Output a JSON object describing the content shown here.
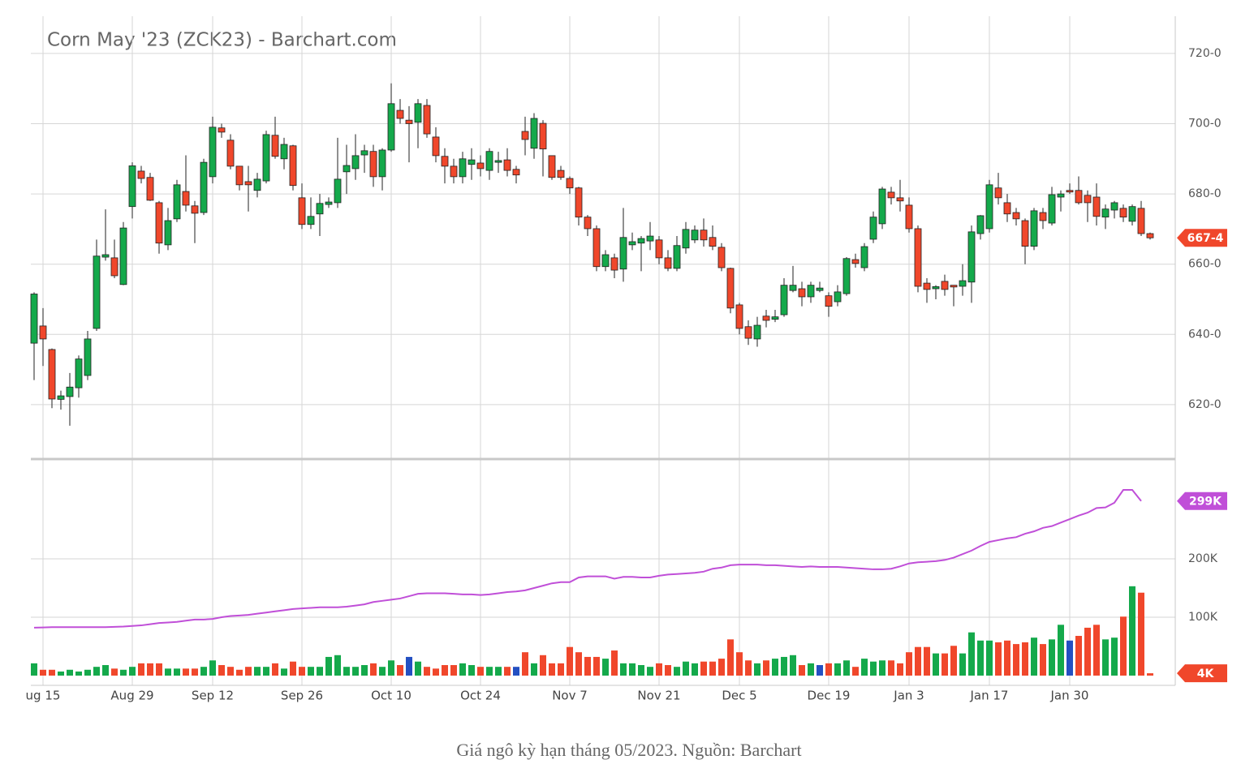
{
  "chart_data": {
    "type": "candlestick",
    "title": "Corn May '23 (ZCK23) - Barchart.com",
    "caption": "Giá ngô kỳ hạn tháng 05/2023. Nguồn: Barchart",
    "categories": [
      null,
      "ug 15",
      null,
      null,
      null,
      null,
      null,
      null,
      null,
      null,
      null,
      "Aug 29",
      null,
      null,
      null,
      null,
      null,
      null,
      null,
      null,
      "Sep 12",
      null,
      null,
      null,
      null,
      null,
      null,
      null,
      null,
      null,
      "Sep 26",
      null,
      null,
      null,
      null,
      null,
      null,
      null,
      null,
      null,
      "Oct 10",
      null,
      null,
      null,
      null,
      null,
      null,
      null,
      null,
      null,
      "Oct 24",
      null,
      null,
      null,
      null,
      null,
      null,
      null,
      null,
      null,
      "Nov 7",
      null,
      null,
      null,
      null,
      null,
      null,
      null,
      null,
      null,
      "Nov 21",
      null,
      null,
      null,
      null,
      null,
      null,
      null,
      null,
      "Dec 5",
      null,
      null,
      null,
      null,
      null,
      null,
      null,
      null,
      null,
      "Dec 19",
      null,
      null,
      null,
      null,
      null,
      null,
      null,
      null,
      "Jan 3",
      null,
      null,
      null,
      null,
      null,
      null,
      null,
      null,
      "Jan 17",
      null,
      null,
      null,
      null,
      null,
      null,
      null,
      null,
      "Jan 30",
      null,
      null,
      null,
      null,
      null,
      null,
      null,
      null,
      null
    ],
    "open": [
      637.5,
      642.4,
      635.7,
      621.5,
      622.3,
      624.8,
      628.3,
      641.7,
      662,
      661.8,
      654.2,
      676.4,
      686.5,
      684.7,
      677.5,
      665.5,
      672.9,
      680.7,
      676.6,
      674.7,
      684.9,
      698.8,
      695.3,
      687.9,
      683.5,
      681,
      683.7,
      696.7,
      690,
      693.7,
      678.9,
      671.3,
      674.3,
      677,
      677.5,
      686.3,
      687.2,
      691.1,
      692.1,
      684.9,
      692.5,
      703.8,
      701,
      700.4,
      705.2,
      696.2,
      690.7,
      687.9,
      684.9,
      688.4,
      688.8,
      686.7,
      689,
      689.7,
      687,
      697.8,
      693,
      700.1,
      690.9,
      686.7,
      684.4,
      681.7,
      673.4,
      670.1,
      659.3,
      661.8,
      658.6,
      665.5,
      666,
      666.6,
      666.9,
      661.8,
      658.8,
      664.6,
      666.9,
      669.7,
      667.6,
      664.8,
      658.8,
      648.4,
      642.2,
      638.7,
      645.2,
      644.3,
      645.6,
      652.5,
      653,
      650.7,
      652.5,
      651,
      649.3,
      651.6,
      661.3,
      659,
      667.1,
      671.5,
      680.5,
      678.9,
      676.8,
      670.1,
      654.6,
      653,
      655.1,
      654,
      653.7,
      654.9,
      668.7,
      670.1,
      681.7,
      677.5,
      674.7,
      672.4,
      665.1,
      674.7,
      671.7,
      679.1,
      681,
      681,
      679.6,
      679.1,
      673.4,
      675.4,
      675.9,
      672.2,
      675.9,
      668.7
    ],
    "high": [
      652,
      647.5,
      636,
      624,
      629,
      634,
      641,
      667,
      675.6,
      667,
      672,
      689,
      688,
      686,
      678,
      676,
      684,
      691,
      678,
      690,
      702,
      700,
      697,
      688,
      688,
      686,
      698,
      702,
      696,
      694,
      683,
      679,
      680,
      679,
      696,
      694,
      697,
      694,
      694,
      693,
      711.5,
      707,
      705,
      707,
      707,
      699,
      693,
      690,
      692,
      693,
      691,
      693,
      692,
      693,
      688,
      702,
      703,
      701,
      691,
      688,
      685,
      682,
      674,
      671,
      664,
      663,
      676,
      669,
      668,
      672,
      668,
      664,
      668,
      672,
      671,
      673,
      671,
      666,
      659,
      649,
      644,
      645,
      647,
      647,
      656,
      659.5,
      655,
      655,
      655,
      652,
      654,
      662,
      663,
      666,
      675,
      682,
      682,
      684,
      679,
      671,
      656,
      654,
      657,
      654,
      660,
      671,
      674,
      684,
      686,
      680,
      676,
      673,
      676,
      676,
      682,
      681,
      683,
      685,
      681,
      683,
      677,
      678,
      677,
      677,
      678,
      669
    ],
    "low": [
      627,
      631,
      619,
      618.6,
      614,
      622,
      627,
      641,
      661,
      656,
      654,
      673,
      683,
      678,
      663,
      664,
      672,
      675,
      666,
      674,
      683,
      696,
      687,
      681,
      675,
      679,
      683,
      690,
      687,
      681,
      670,
      670,
      668,
      676,
      676,
      680,
      684,
      686,
      682,
      681,
      692,
      700,
      689,
      693,
      696,
      689,
      683,
      683,
      683,
      684,
      685,
      684,
      686,
      685,
      683,
      691,
      690,
      685,
      684,
      684,
      680,
      671,
      668,
      658,
      658,
      656,
      655,
      664,
      658,
      664,
      660,
      658,
      658,
      663,
      666,
      665,
      664,
      658,
      646,
      640,
      637,
      636.5,
      642,
      643.5,
      645,
      652,
      648,
      649,
      652,
      645,
      648,
      651,
      659,
      658,
      666,
      670,
      677,
      675,
      669,
      652,
      649,
      650,
      651,
      648,
      651,
      649,
      667,
      669,
      677,
      672,
      671,
      660,
      664,
      670,
      671,
      675,
      680,
      677,
      672,
      671,
      670,
      673,
      672,
      671,
      668,
      667
    ],
    "close": [
      651.5,
      638.7,
      621.6,
      622.5,
      625,
      633,
      638.7,
      662.3,
      662.7,
      656.7,
      670.3,
      688,
      684.4,
      678.2,
      666,
      672.4,
      682.6,
      676.8,
      674.5,
      689,
      699,
      697.6,
      687.9,
      682.6,
      682.6,
      684.2,
      696.9,
      690.7,
      694.1,
      682.4,
      671.3,
      673.6,
      677.3,
      677.7,
      684.2,
      688.1,
      690.9,
      692.3,
      684.9,
      692.5,
      705.7,
      701.5,
      700,
      705.7,
      697.1,
      690.9,
      687.9,
      684.9,
      690,
      689.7,
      687.2,
      692.1,
      689.5,
      686.7,
      685.4,
      695.5,
      701.5,
      692.8,
      684.7,
      684.7,
      681.7,
      673.4,
      670.1,
      659.3,
      662.7,
      658.3,
      667.6,
      666.4,
      667.3,
      668,
      661.8,
      658.8,
      665.3,
      669.9,
      669.7,
      666.9,
      665.1,
      659,
      647.5,
      641.7,
      638.9,
      642.6,
      644,
      645,
      654,
      654,
      650.7,
      654,
      653.2,
      648,
      652.1,
      661.6,
      660.2,
      665,
      673.4,
      681.4,
      678.9,
      678,
      670.1,
      653.7,
      652.8,
      653.6,
      652.8,
      653.5,
      655.3,
      669.2,
      673.8,
      682.6,
      678.9,
      674.3,
      672.9,
      665.1,
      675.2,
      672.4,
      679.8,
      680,
      680.6,
      677.5,
      677.5,
      673.6,
      675.7,
      677.5,
      673.4,
      676.4,
      668.7,
      667.5
    ],
    "up_color": "#14a94b",
    "down_color": "#f0472b",
    "ylim": [
      604.5,
      730.6
    ],
    "yticks": [
      {
        "value": 620,
        "label": "620-0"
      },
      {
        "value": 640,
        "label": "640-0"
      },
      {
        "value": 660,
        "label": "660-0"
      },
      {
        "value": 680,
        "label": "680-0"
      },
      {
        "value": 700,
        "label": "700-0"
      },
      {
        "value": 720,
        "label": "720-0"
      }
    ],
    "price_tag": {
      "value": 667.5,
      "label": "667-4"
    },
    "volume": {
      "values": [
        21000,
        10000,
        10000,
        7000,
        10000,
        7000,
        10000,
        15000,
        18000,
        12000,
        10000,
        15000,
        21000,
        21000,
        21000,
        12000,
        12000,
        12000,
        12000,
        15000,
        26000,
        18000,
        15000,
        10000,
        15000,
        15000,
        15000,
        21000,
        12000,
        24000,
        15000,
        15000,
        15000,
        32000,
        35000,
        15000,
        15000,
        18000,
        21000,
        15000,
        26000,
        18000,
        32000,
        24000,
        15000,
        12000,
        18000,
        18000,
        21000,
        18000,
        15000,
        15000,
        15000,
        15000,
        15000,
        40000,
        21000,
        35000,
        21000,
        21000,
        49000,
        40000,
        32000,
        32000,
        29000,
        43000,
        21000,
        21000,
        18000,
        15000,
        21000,
        18000,
        15000,
        24000,
        21000,
        24000,
        24000,
        29000,
        62000,
        40000,
        26000,
        21000,
        26000,
        29000,
        32000,
        35000,
        18000,
        21000,
        18000,
        21000,
        21000,
        26000,
        15000,
        29000,
        24000,
        26000,
        26000,
        21000,
        40000,
        49000,
        49000,
        38000,
        38000,
        51000,
        38000,
        74000,
        60000,
        60000,
        57000,
        60000,
        54000,
        57000,
        65000,
        54000,
        62000,
        87000,
        60000,
        68000,
        82000,
        87000,
        62000,
        65000,
        101000,
        153000,
        142000,
        4000
      ],
      "colors": [
        "#14a94b",
        "#f0472b",
        "#f0472b",
        "#14a94b",
        "#14a94b",
        "#14a94b",
        "#14a94b",
        "#14a94b",
        "#14a94b",
        "#f0472b",
        "#14a94b",
        "#14a94b",
        "#f0472b",
        "#f0472b",
        "#f0472b",
        "#14a94b",
        "#14a94b",
        "#f0472b",
        "#f0472b",
        "#14a94b",
        "#14a94b",
        "#f0472b",
        "#f0472b",
        "#f0472b",
        "#f0472b",
        "#14a94b",
        "#14a94b",
        "#f0472b",
        "#14a94b",
        "#f0472b",
        "#f0472b",
        "#14a94b",
        "#14a94b",
        "#14a94b",
        "#14a94b",
        "#14a94b",
        "#14a94b",
        "#14a94b",
        "#f0472b",
        "#14a94b",
        "#14a94b",
        "#f0472b",
        "#2450c2",
        "#14a94b",
        "#f0472b",
        "#f0472b",
        "#f0472b",
        "#f0472b",
        "#14a94b",
        "#14a94b",
        "#f0472b",
        "#14a94b",
        "#14a94b",
        "#f0472b",
        "#2450c2",
        "#f0472b",
        "#14a94b",
        "#f0472b",
        "#f0472b",
        "#f0472b",
        "#f0472b",
        "#f0472b",
        "#f0472b",
        "#f0472b",
        "#14a94b",
        "#f0472b",
        "#14a94b",
        "#14a94b",
        "#14a94b",
        "#14a94b",
        "#f0472b",
        "#f0472b",
        "#14a94b",
        "#14a94b",
        "#14a94b",
        "#f0472b",
        "#f0472b",
        "#f0472b",
        "#f0472b",
        "#f0472b",
        "#f0472b",
        "#14a94b",
        "#f0472b",
        "#14a94b",
        "#14a94b",
        "#14a94b",
        "#f0472b",
        "#14a94b",
        "#2450c2",
        "#f0472b",
        "#14a94b",
        "#14a94b",
        "#f0472b",
        "#14a94b",
        "#14a94b",
        "#14a94b",
        "#f0472b",
        "#f0472b",
        "#f0472b",
        "#f0472b",
        "#f0472b",
        "#14a94b",
        "#f0472b",
        "#f0472b",
        "#14a94b",
        "#14a94b",
        "#14a94b",
        "#14a94b",
        "#f0472b",
        "#f0472b",
        "#f0472b",
        "#f0472b",
        "#14a94b",
        "#f0472b",
        "#14a94b",
        "#14a94b",
        "#2450c2",
        "#f0472b",
        "#f0472b",
        "#f0472b",
        "#14a94b",
        "#14a94b",
        "#f0472b",
        "#14a94b",
        "#f0472b",
        "#f0472b"
      ]
    },
    "open_interest": {
      "color": "#c04fd8",
      "values": [
        82000,
        82500,
        83000,
        83000,
        83000,
        83000,
        83000,
        83000,
        83000,
        83500,
        84000,
        85000,
        86000,
        88000,
        90000,
        91000,
        92000,
        94000,
        96000,
        96000,
        97000,
        100000,
        102000,
        103000,
        104000,
        106000,
        108000,
        110000,
        112000,
        114000,
        115000,
        116000,
        117000,
        117000,
        117000,
        118000,
        120000,
        122000,
        126000,
        128000,
        130000,
        132000,
        136000,
        140000,
        141000,
        141000,
        141000,
        140000,
        139000,
        139000,
        138000,
        139000,
        141000,
        143000,
        144000,
        146000,
        150000,
        154000,
        158000,
        160000,
        160000,
        168000,
        170000,
        170000,
        170000,
        166000,
        169000,
        169000,
        168000,
        168000,
        171000,
        173000,
        174000,
        175000,
        176000,
        178000,
        183000,
        185000,
        189000,
        190000,
        190000,
        190000,
        189000,
        189000,
        188000,
        187000,
        186000,
        187000,
        186000,
        186000,
        186000,
        185000,
        184000,
        183000,
        182000,
        182000,
        183000,
        187000,
        192000,
        194000,
        195000,
        196000,
        198000,
        202000,
        208000,
        214000,
        222000,
        229000,
        232000,
        235000,
        237000,
        243000,
        247000,
        253000,
        256000,
        262000,
        268000,
        274000,
        279000,
        287000,
        288000,
        296000,
        318000,
        318000,
        299000,
        null
      ]
    },
    "oi_tag": {
      "value": 299000,
      "label": "299K"
    },
    "volume_tag": {
      "value": 4000,
      "label": "4K"
    },
    "y2lim": [
      -16700,
      370800
    ],
    "y2ticks": [
      {
        "value": 100000,
        "label": "100K"
      },
      {
        "value": 200000,
        "label": "200K"
      }
    ],
    "grid": true
  }
}
